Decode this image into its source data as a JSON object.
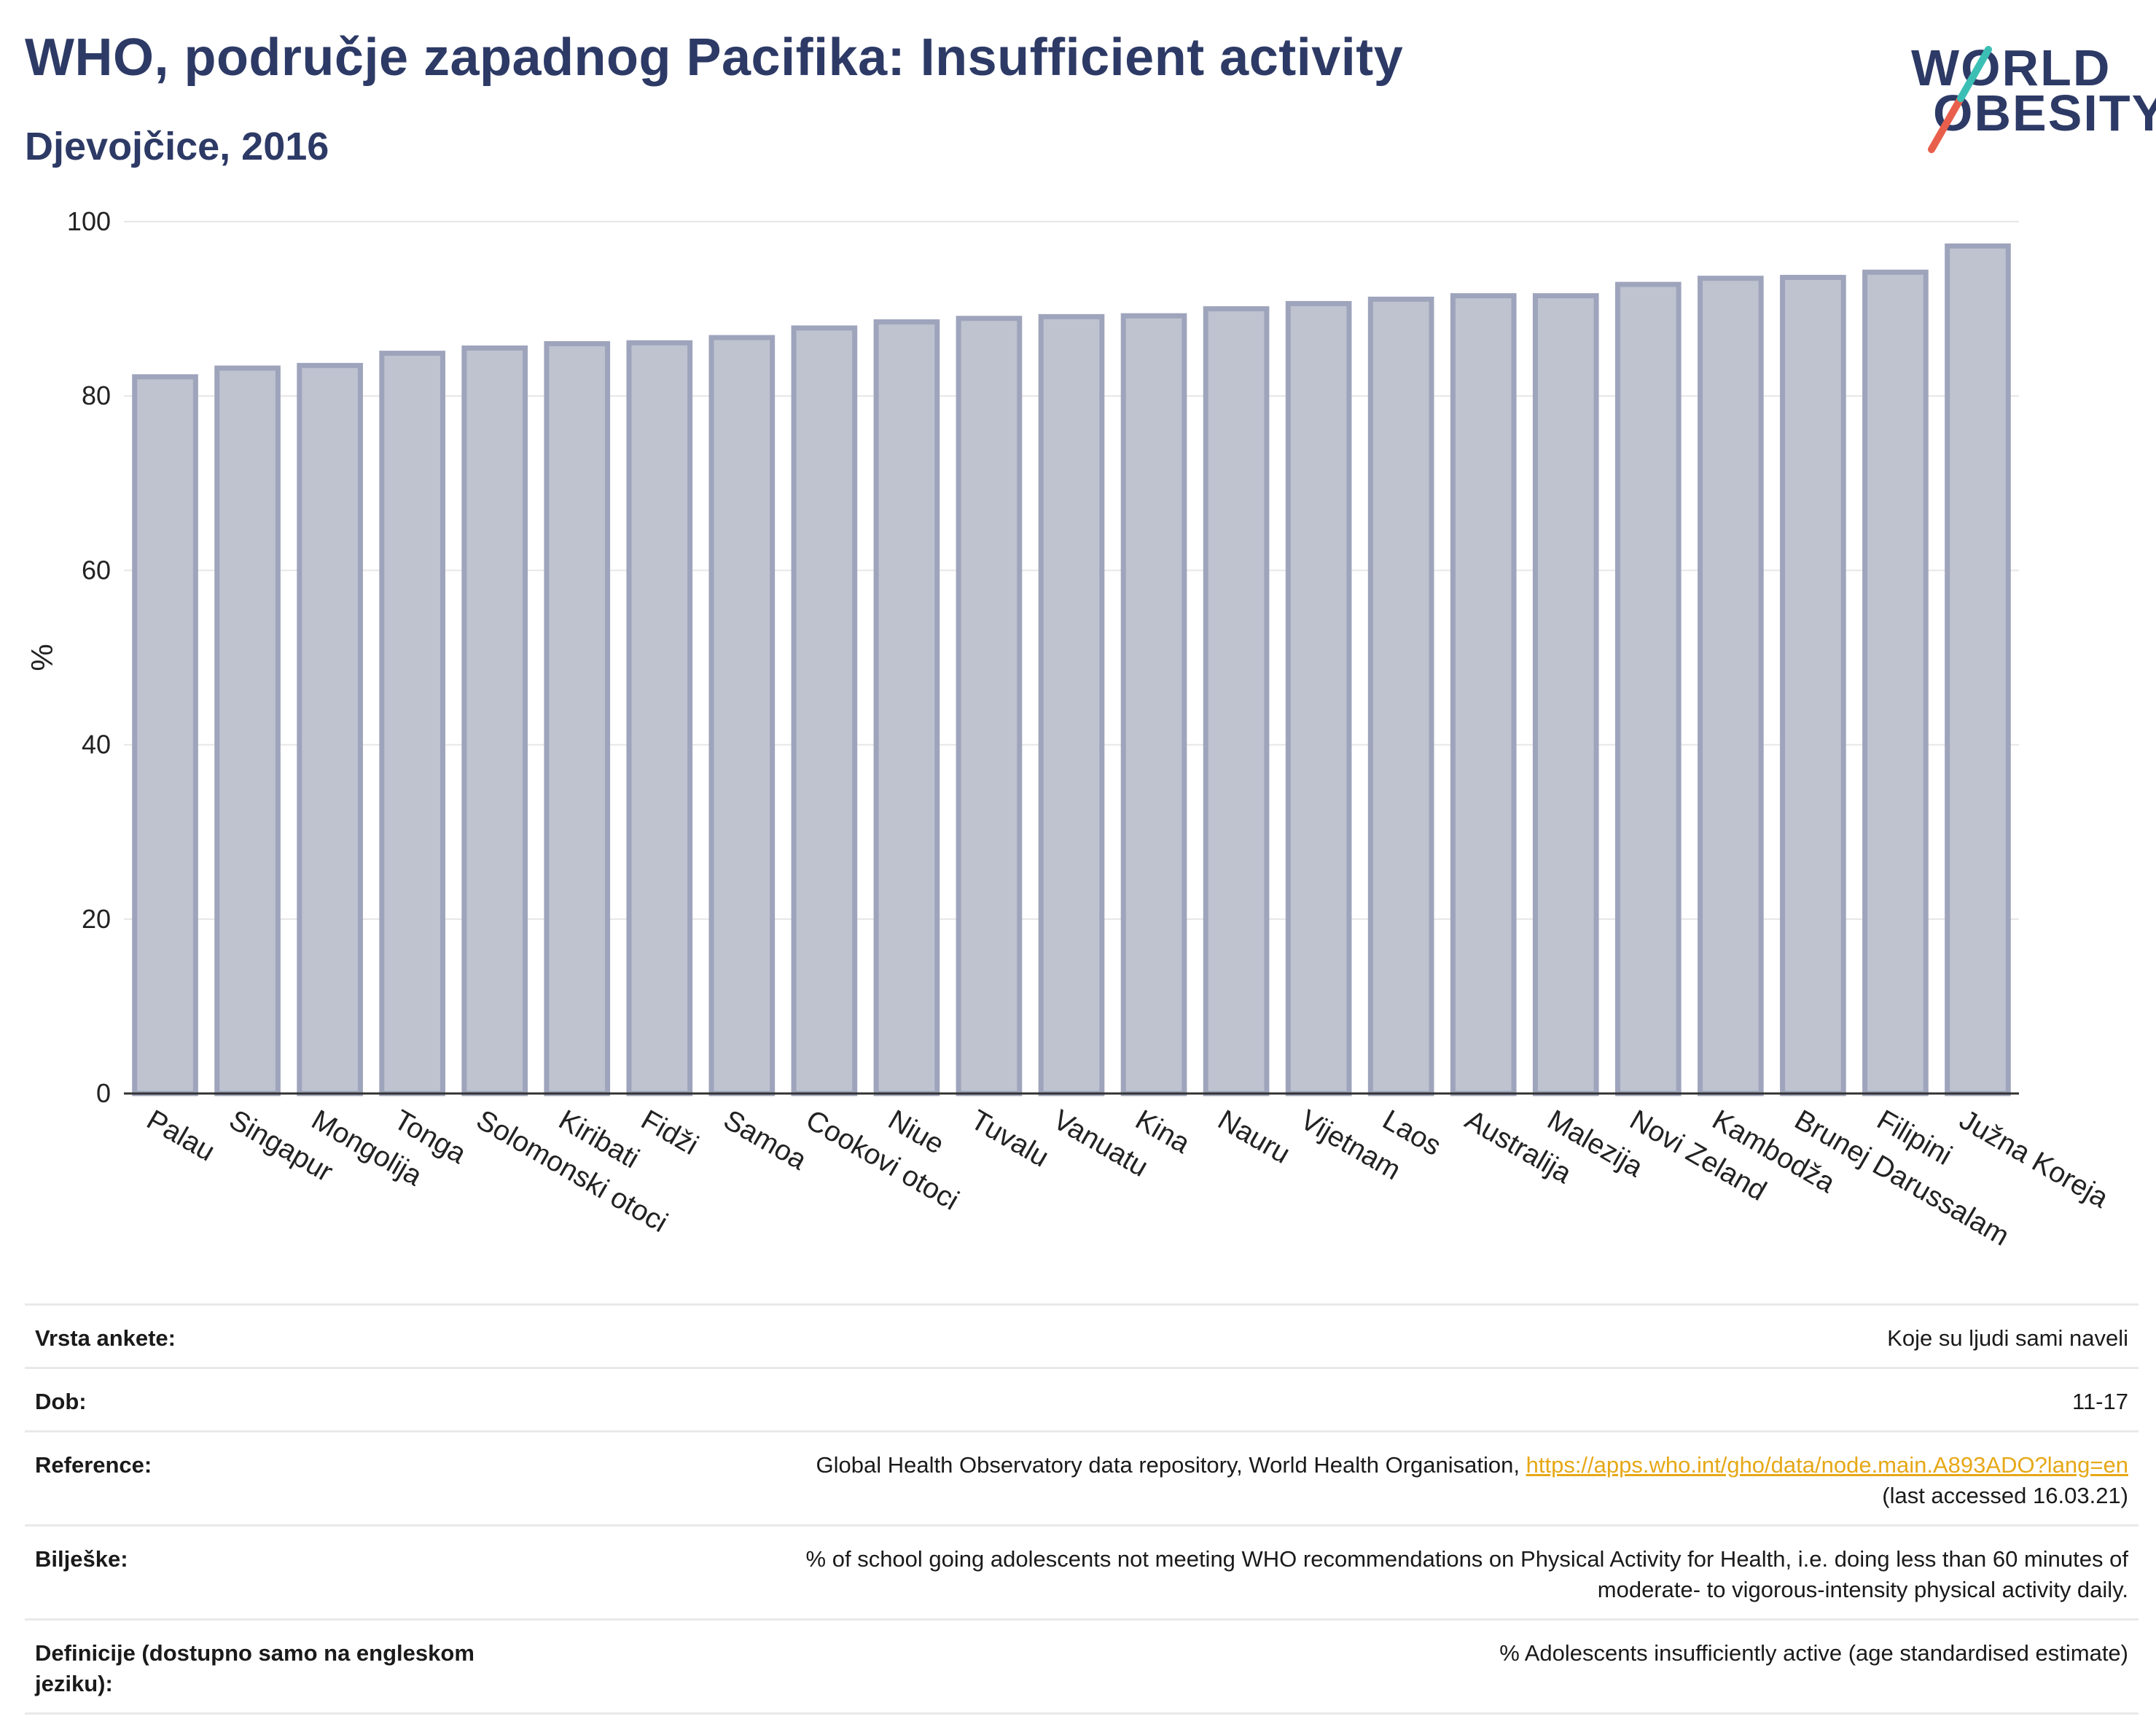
{
  "header": {
    "title": "WHO, područje zapadnog Pacifika: Insufficient activity",
    "subtitle": "Djevojčice, 2016"
  },
  "logo": {
    "line1": "WORLD",
    "line2": "OBESITY",
    "accent_teal": "#3bbfb4",
    "accent_red": "#e8604c"
  },
  "colors": {
    "bar_fill": "#bfc3d0",
    "bar_stroke": "#9ea4bb",
    "text_dark": "#2d3a66"
  },
  "chart_data": {
    "type": "bar",
    "ylabel": "%",
    "ylim": [
      0,
      100
    ],
    "yticks": [
      0,
      20,
      40,
      60,
      80,
      100
    ],
    "grid": true,
    "categories": [
      "Palau",
      "Singapur",
      "Mongolija",
      "Tonga",
      "Solomonski otoci",
      "Kiribati",
      "Fidži",
      "Samoa",
      "Cookovi otoci",
      "Niue",
      "Tuvalu",
      "Vanuatu",
      "Kina",
      "Nauru",
      "Vijetnam",
      "Laos",
      "Australija",
      "Malezija",
      "Novi Zeland",
      "Kambodža",
      "Brunej Darussalam",
      "Filipini",
      "Južna Koreja"
    ],
    "values": [
      82.2,
      83.2,
      83.5,
      84.9,
      85.5,
      86.0,
      86.1,
      86.7,
      87.8,
      88.5,
      88.9,
      89.1,
      89.2,
      90.0,
      90.6,
      91.1,
      91.5,
      91.5,
      92.8,
      93.5,
      93.6,
      94.2,
      97.2
    ]
  },
  "meta": [
    {
      "key": "Vrsta ankete:",
      "value": "Koje su ljudi sami naveli"
    },
    {
      "key": "Dob:",
      "value": "11-17"
    },
    {
      "key": "Reference:",
      "value_prefix": "Global Health Observatory data repository, World Health Organisation, ",
      "link": "https://apps.who.int/gho/data/node.main.A893ADO?lang=en",
      "value_suffix": "(last accessed 16.03.21)"
    },
    {
      "key": "Bilješke:",
      "value": "% of school going adolescents not meeting WHO recommendations on Physical Activity for Health, i.e. doing less than 60 minutes of",
      "value2": "moderate- to vigorous-intensity physical activity daily."
    },
    {
      "key": "Definicije (dostupno samo na engleskom jeziku):",
      "value": "% Adolescents insufficiently active (age standardised estimate)"
    }
  ]
}
